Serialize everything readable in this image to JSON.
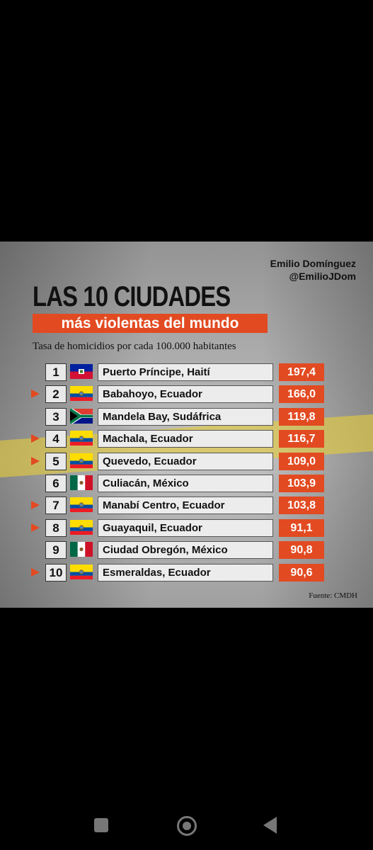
{
  "card": {
    "author_name": "Emilio Domínguez",
    "author_handle": "@EmilioJDom",
    "title_line1": "LAS 10 CIUDADES",
    "title_line2": "más violentas del mundo",
    "subtitle": "Tasa de homicidios por cada 100.000 habitantes",
    "source": "Fuente: CMDH"
  },
  "colors": {
    "accent": "#e24a21",
    "rank_bg": "#e9e9e9",
    "city_bg": "#ececec"
  },
  "chart_data": {
    "type": "table",
    "title": "LAS 10 CIUDADES más violentas del mundo",
    "subtitle": "Tasa de homicidios por cada 100.000 habitantes",
    "columns": [
      "rank",
      "city",
      "rate"
    ],
    "rows": [
      {
        "rank": "1",
        "city": "Puerto Príncipe, Haití",
        "rate": "197,4",
        "flag": "haiti-flag",
        "highlighted": false
      },
      {
        "rank": "2",
        "city": "Babahoyo, Ecuador",
        "rate": "166,0",
        "flag": "ecuador-flag",
        "highlighted": true
      },
      {
        "rank": "3",
        "city": "Mandela Bay, Sudáfrica",
        "rate": "119,8",
        "flag": "south-africa-flag",
        "highlighted": false
      },
      {
        "rank": "4",
        "city": "Machala, Ecuador",
        "rate": "116,7",
        "flag": "ecuador-flag",
        "highlighted": true
      },
      {
        "rank": "5",
        "city": "Quevedo, Ecuador",
        "rate": "109,0",
        "flag": "ecuador-flag",
        "highlighted": true
      },
      {
        "rank": "6",
        "city": "Culiacán, México",
        "rate": "103,9",
        "flag": "mexico-flag",
        "highlighted": false
      },
      {
        "rank": "7",
        "city": "Manabí Centro, Ecuador",
        "rate": "103,8",
        "flag": "ecuador-flag",
        "highlighted": true
      },
      {
        "rank": "8",
        "city": "Guayaquil, Ecuador",
        "rate": "91,1",
        "flag": "ecuador-flag",
        "highlighted": true
      },
      {
        "rank": "9",
        "city": "Ciudad Obregón, México",
        "rate": "90,8",
        "flag": "mexico-flag",
        "highlighted": false
      },
      {
        "rank": "10",
        "city": "Esmeraldas, Ecuador",
        "rate": "90,6",
        "flag": "ecuador-flag",
        "highlighted": true
      }
    ]
  },
  "navbar": {
    "recents_icon": "square-icon",
    "home_icon": "circle-icon",
    "back_icon": "triangle-back-icon"
  }
}
